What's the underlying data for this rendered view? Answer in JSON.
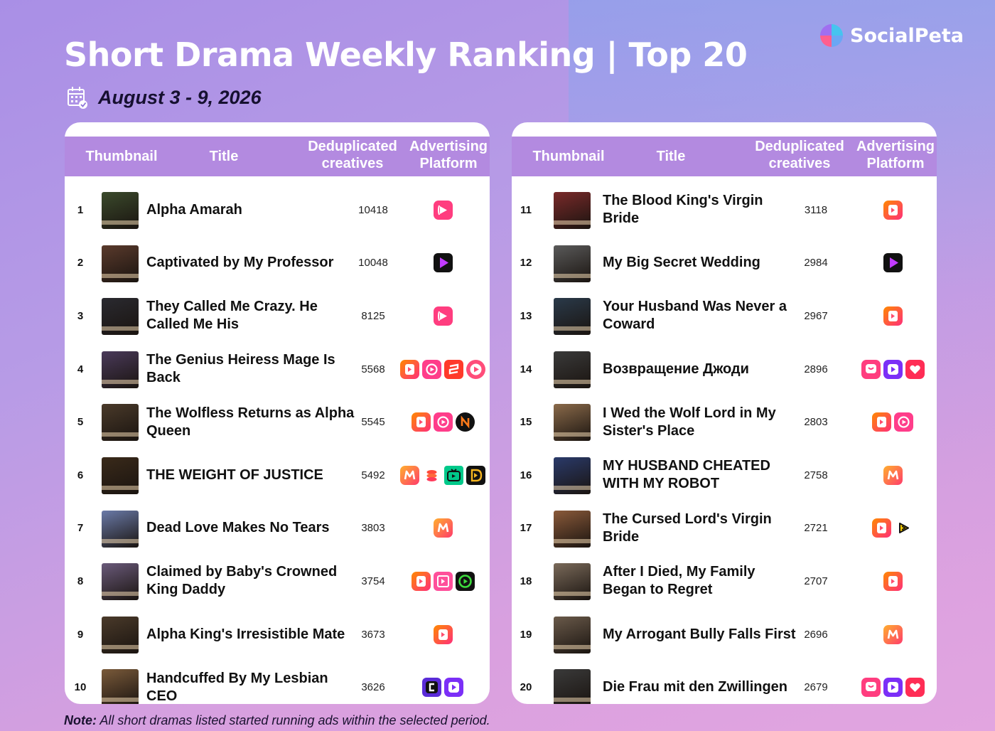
{
  "header": {
    "title": "Short Drama Weekly Ranking | Top 20",
    "date": "August 3 - 9, 2026",
    "brand": "SocialPeta"
  },
  "columns": {
    "thumbnail": "Thumbnail",
    "title": "Title",
    "creatives": "Deduplicated creatives",
    "platform": "Advertising Platform"
  },
  "rankings_left": [
    {
      "rank": "1",
      "title": "Alpha Amarah",
      "creatives": "10418",
      "platforms": [
        "pink-play-icon"
      ],
      "thumb_color": "#3b4a2c"
    },
    {
      "rank": "2",
      "title": "Captivated by My Professor",
      "creatives": "10048",
      "platforms": [
        "black-play-icon"
      ],
      "thumb_color": "#5a3a2c"
    },
    {
      "rank": "3",
      "title": "They Called Me Crazy. He Called Me His",
      "creatives": "8125",
      "platforms": [
        "pink-play-icon"
      ],
      "thumb_color": "#2a2a30"
    },
    {
      "rank": "4",
      "title": "The Genius Heiress Mage Is Back",
      "creatives": "5568",
      "platforms": [
        "orange-play-icon",
        "pink-circle-play-icon",
        "red-s-icon",
        "pink-ring-play-icon"
      ],
      "thumb_color": "#4a3a5a"
    },
    {
      "rank": "5",
      "title": "The Wolfless Returns as Alpha Queen",
      "creatives": "5545",
      "platforms": [
        "orange-play-icon",
        "pink-circle-play-icon",
        "black-orange-n-icon"
      ],
      "thumb_color": "#4a3a2a"
    },
    {
      "rank": "6",
      "title": "THE WEIGHT OF JUSTICE",
      "creatives": "5492",
      "platforms": [
        "orange-m-icon",
        "red-stack-icon",
        "green-tv-icon",
        "gold-d-icon"
      ],
      "thumb_color": "#3a2a1a"
    },
    {
      "rank": "7",
      "title": "Dead Love Makes No Tears",
      "creatives": "3803",
      "platforms": [
        "orange-m-icon"
      ],
      "thumb_color": "#6a7aa8"
    },
    {
      "rank": "8",
      "title": "Claimed by Baby's Crowned King Daddy",
      "creatives": "3754",
      "platforms": [
        "orange-play-icon",
        "pink-frame-icon",
        "green-circle-icon"
      ],
      "thumb_color": "#6a5a7a"
    },
    {
      "rank": "9",
      "title": "Alpha King's Irresistible Mate",
      "creatives": "3673",
      "platforms": [
        "orange-play-icon"
      ],
      "thumb_color": "#4a3a2a"
    },
    {
      "rank": "10",
      "title": "Handcuffed By My Lesbian CEO",
      "creatives": "3626",
      "platforms": [
        "purple-c-icon",
        "purple-play-icon"
      ],
      "thumb_color": "#7a5a3a"
    }
  ],
  "rankings_right": [
    {
      "rank": "11",
      "title": "The Blood King's Virgin Bride",
      "creatives": "3118",
      "platforms": [
        "orange-play-icon"
      ],
      "thumb_color": "#7a2a2a"
    },
    {
      "rank": "12",
      "title": "My Big Secret Wedding",
      "creatives": "2984",
      "platforms": [
        "black-play-icon"
      ],
      "thumb_color": "#5a5a5a"
    },
    {
      "rank": "13",
      "title": "Your Husband Was Never a Coward",
      "creatives": "2967",
      "platforms": [
        "orange-play-icon"
      ],
      "thumb_color": "#2a3a4a"
    },
    {
      "rank": "14",
      "title": "Возвращение Джоди",
      "creatives": "2896",
      "platforms": [
        "pink-chat-icon",
        "purple-play-icon",
        "red-heart-icon"
      ],
      "thumb_color": "#3a3a3a"
    },
    {
      "rank": "15",
      "title": "I Wed the Wolf Lord in My Sister's Place",
      "creatives": "2803",
      "platforms": [
        "orange-play-icon",
        "pink-circle-play-icon"
      ],
      "thumb_color": "#8a6a4a"
    },
    {
      "rank": "16",
      "title": "MY HUSBAND CHEATED WITH MY ROBOT",
      "creatives": "2758",
      "platforms": [
        "orange-m-icon"
      ],
      "thumb_color": "#2a3a6a"
    },
    {
      "rank": "17",
      "title": "The Cursed Lord's Virgin Bride",
      "creatives": "2721",
      "platforms": [
        "orange-play-icon",
        "yellow-play-icon"
      ],
      "thumb_color": "#8a5a3a"
    },
    {
      "rank": "18",
      "title": "After I Died, My Family Began to Regret",
      "creatives": "2707",
      "platforms": [
        "orange-play-icon"
      ],
      "thumb_color": "#7a6a5a"
    },
    {
      "rank": "19",
      "title": "My Arrogant Bully Falls First",
      "creatives": "2696",
      "platforms": [
        "orange-m-icon"
      ],
      "thumb_color": "#6a5a4a"
    },
    {
      "rank": "20",
      "title": "Die Frau mit den Zwillingen",
      "creatives": "2679",
      "platforms": [
        "pink-chat-icon",
        "purple-play-icon",
        "red-heart-icon"
      ],
      "thumb_color": "#3a3a3a"
    }
  ],
  "note": {
    "label": "Note:",
    "text": " All short dramas listed started running ads within the selected period."
  }
}
